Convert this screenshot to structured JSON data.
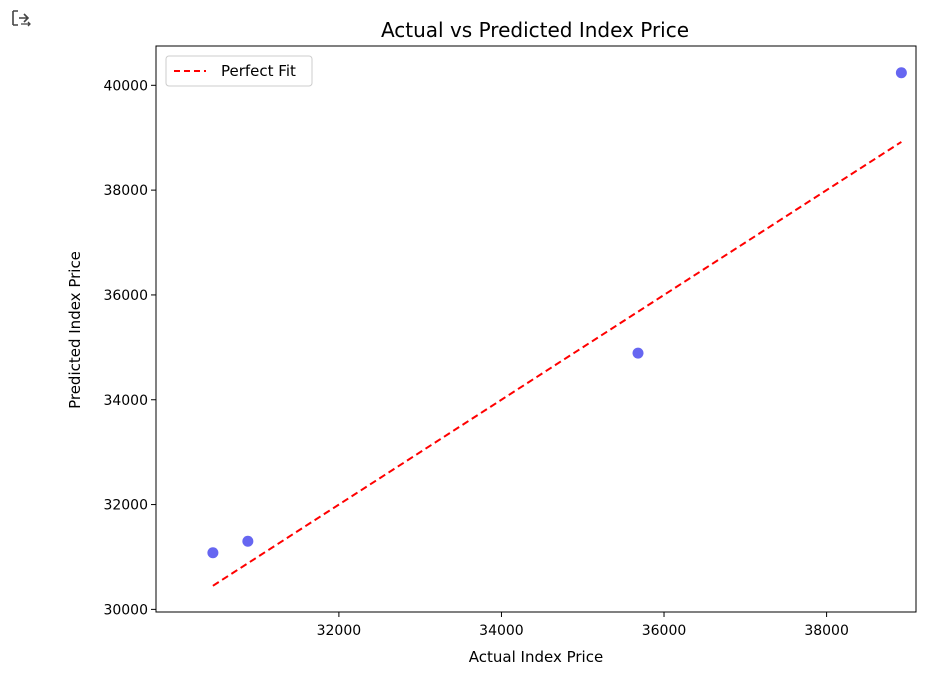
{
  "chart_data": {
    "type": "scatter",
    "title": "Actual vs Predicted Index Price",
    "xlabel": "Actual Index Price",
    "ylabel": "Predicted Index Price",
    "xlim": [
      29750,
      39100
    ],
    "ylim": [
      29950,
      40750
    ],
    "xticks": [
      "32000",
      "34000",
      "36000",
      "38000"
    ],
    "yticks": [
      "30000",
      "32000",
      "34000",
      "36000",
      "38000",
      "40000"
    ],
    "grid": false,
    "legend": {
      "position": "top-left",
      "entries": [
        "Perfect Fit"
      ]
    },
    "series": [
      {
        "kind": "scatter",
        "color": "#5555f0",
        "points": [
          {
            "x": 30450,
            "y": 31080
          },
          {
            "x": 30880,
            "y": 31300
          },
          {
            "x": 35680,
            "y": 34890
          },
          {
            "x": 38920,
            "y": 40240
          }
        ]
      },
      {
        "name": "Perfect Fit",
        "kind": "line",
        "style": "dashed",
        "color": "#ff0000",
        "points": [
          {
            "x": 30450,
            "y": 30450
          },
          {
            "x": 38920,
            "y": 38920
          }
        ]
      }
    ]
  }
}
